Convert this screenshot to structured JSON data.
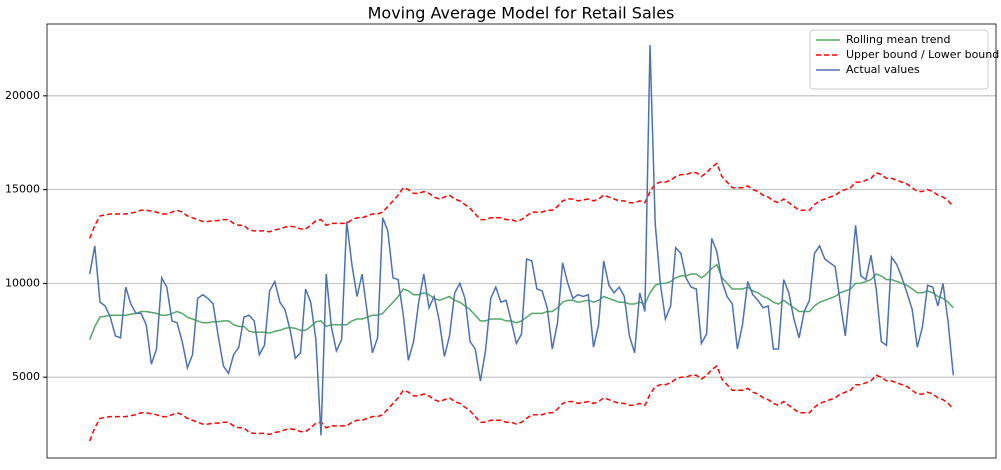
{
  "chart_data": {
    "type": "line",
    "title": "Moving Average Model for Retail Sales",
    "ylim": [
      691,
      23830
    ],
    "yticks": [
      5000,
      10000,
      15000,
      20000
    ],
    "grid": true,
    "legend": "upper right",
    "series": [
      {
        "name": "Rolling mean trend",
        "color": "#55a868",
        "values": [
          7000,
          7700,
          8200,
          8250,
          8300,
          8300,
          8300,
          8300,
          8350,
          8400,
          8500,
          8500,
          8450,
          8400,
          8300,
          8300,
          8400,
          8500,
          8400,
          8200,
          8100,
          8000,
          7900,
          7900,
          7950,
          7950,
          8000,
          8000,
          7800,
          7700,
          7700,
          7450,
          7400,
          7400,
          7400,
          7350,
          7450,
          7500,
          7600,
          7650,
          7600,
          7500,
          7500,
          7700,
          7950,
          8000,
          7700,
          7800,
          7800,
          7800,
          7800,
          8000,
          8100,
          8100,
          8200,
          8300,
          8300,
          8400,
          8700,
          9000,
          9300,
          9700,
          9600,
          9400,
          9400,
          9500,
          9400,
          9200,
          9100,
          9200,
          9300,
          9100,
          9000,
          8800,
          8600,
          8300,
          8000,
          8000,
          8100,
          8100,
          8100,
          8000,
          8000,
          7900,
          8000,
          8200,
          8400,
          8400,
          8400,
          8500,
          8500,
          8700,
          9000,
          9100,
          9100,
          9000,
          9050,
          9100,
          9000,
          9100,
          9300,
          9200,
          9100,
          9000,
          9000,
          8900,
          8900,
          9000,
          8900,
          9500,
          9900,
          10000,
          10000,
          10100,
          10300,
          10400,
          10400,
          10500,
          10500,
          10300,
          10500,
          10800,
          11000,
          10300,
          10000,
          9700,
          9700,
          9700,
          9800,
          9600,
          9500,
          9300,
          9200,
          9000,
          8900,
          9100,
          8900,
          8700,
          8500,
          8500,
          8500,
          8800,
          9000,
          9100,
          9200,
          9300,
          9500,
          9600,
          9700,
          10000,
          10000,
          10100,
          10200,
          10500,
          10400,
          10200,
          10200,
          10100,
          10000,
          9900,
          9700,
          9500,
          9500,
          9600,
          9500,
          9300,
          9200,
          9000,
          8700
        ]
      },
      {
        "name": "Upper bound / Lower bound",
        "color": "#ff0000",
        "dashed": true,
        "values": [
          12400,
          13100,
          13600,
          13650,
          13700,
          13700,
          13700,
          13700,
          13750,
          13800,
          13900,
          13900,
          13850,
          13800,
          13700,
          13700,
          13800,
          13900,
          13800,
          13600,
          13500,
          13400,
          13300,
          13300,
          13350,
          13350,
          13400,
          13400,
          13200,
          13100,
          13100,
          12850,
          12800,
          12800,
          12800,
          12750,
          12850,
          12900,
          13000,
          13050,
          13000,
          12900,
          12900,
          13100,
          13350,
          13400,
          13100,
          13200,
          13200,
          13200,
          13200,
          13400,
          13500,
          13500,
          13600,
          13700,
          13700,
          13800,
          14100,
          14400,
          14700,
          15100,
          15000,
          14800,
          14800,
          14900,
          14800,
          14600,
          14500,
          14600,
          14700,
          14500,
          14400,
          14200,
          14000,
          13700,
          13400,
          13400,
          13500,
          13500,
          13500,
          13400,
          13400,
          13300,
          13400,
          13600,
          13800,
          13800,
          13800,
          13900,
          13900,
          14100,
          14400,
          14500,
          14500,
          14400,
          14450,
          14500,
          14400,
          14500,
          14700,
          14600,
          14500,
          14400,
          14400,
          14300,
          14300,
          14400,
          14300,
          14900,
          15300,
          15400,
          15400,
          15500,
          15700,
          15800,
          15800,
          15900,
          15900,
          15700,
          15900,
          16200,
          16400,
          15700,
          15400,
          15100,
          15100,
          15100,
          15200,
          15000,
          14900,
          14700,
          14600,
          14400,
          14300,
          14500,
          14300,
          14100,
          13900,
          13900,
          13900,
          14200,
          14400,
          14500,
          14600,
          14700,
          14900,
          15000,
          15100,
          15400,
          15400,
          15500,
          15600,
          15900,
          15800,
          15600,
          15600,
          15500,
          15400,
          15300,
          15100,
          14900,
          14900,
          15000,
          14900,
          14700,
          14600,
          14400,
          14100
        ],
        "lower": [
          1600,
          2300,
          2800,
          2850,
          2900,
          2900,
          2900,
          2900,
          2950,
          3000,
          3100,
          3100,
          3050,
          3000,
          2900,
          2900,
          3000,
          3100,
          3000,
          2800,
          2700,
          2600,
          2500,
          2500,
          2550,
          2550,
          2600,
          2600,
          2400,
          2300,
          2300,
          2050,
          2000,
          2000,
          2000,
          1950,
          2050,
          2100,
          2200,
          2250,
          2200,
          2100,
          2100,
          2300,
          2550,
          2600,
          2300,
          2400,
          2400,
          2400,
          2400,
          2600,
          2700,
          2700,
          2800,
          2900,
          2900,
          3000,
          3300,
          3600,
          3900,
          4300,
          4200,
          4000,
          4000,
          4100,
          4000,
          3800,
          3700,
          3800,
          3900,
          3700,
          3600,
          3400,
          3200,
          2900,
          2600,
          2600,
          2700,
          2700,
          2700,
          2600,
          2600,
          2500,
          2600,
          2800,
          3000,
          3000,
          3000,
          3100,
          3100,
          3300,
          3600,
          3700,
          3700,
          3600,
          3650,
          3700,
          3600,
          3700,
          3900,
          3800,
          3700,
          3600,
          3600,
          3500,
          3500,
          3600,
          3500,
          4100,
          4500,
          4600,
          4600,
          4700,
          4900,
          5000,
          5000,
          5100,
          5100,
          4900,
          5100,
          5400,
          5600,
          4900,
          4600,
          4300,
          4300,
          4300,
          4400,
          4200,
          4100,
          3900,
          3800,
          3600,
          3500,
          3700,
          3500,
          3300,
          3100,
          3100,
          3100,
          3400,
          3600,
          3700,
          3800,
          3900,
          4100,
          4200,
          4300,
          4600,
          4600,
          4700,
          4800,
          5100,
          5000,
          4800,
          4800,
          4700,
          4600,
          4500,
          4300,
          4100,
          4100,
          4200,
          4100,
          3900,
          3800,
          3600,
          3300
        ]
      },
      {
        "name": "Actual values",
        "color": "#4c72b0",
        "values": [
          10500,
          12000,
          9000,
          8800,
          8200,
          7200,
          7100,
          9800,
          8900,
          8400,
          8400,
          7800,
          5700,
          6500,
          10300,
          9800,
          8000,
          7900,
          6900,
          5500,
          6200,
          9200,
          9400,
          9200,
          8900,
          7200,
          5600,
          5200,
          6200,
          6600,
          8200,
          8300,
          8000,
          6200,
          6700,
          9600,
          10100,
          9000,
          8600,
          7500,
          6000,
          6300,
          9700,
          9000,
          7000,
          1900,
          10500,
          7700,
          6400,
          7000,
          13300,
          11000,
          9300,
          10500,
          8400,
          6300,
          7100,
          13500,
          12800,
          10300,
          10200,
          8300,
          5900,
          6900,
          9000,
          10500,
          8700,
          9300,
          8000,
          6100,
          7200,
          9500,
          10000,
          9200,
          6900,
          6500,
          4800,
          6400,
          9200,
          9800,
          9000,
          9100,
          8000,
          6800,
          7300,
          11300,
          11200,
          9700,
          9600,
          8700,
          6500,
          7900,
          11100,
          10000,
          9200,
          9400,
          9300,
          9400,
          6600,
          7800,
          11200,
          9900,
          9500,
          9800,
          9300,
          7200,
          6300,
          9500,
          8500,
          22700,
          13200,
          10000,
          8100,
          8800,
          11900,
          11600,
          10300,
          9800,
          9700,
          6800,
          7300,
          12400,
          11700,
          10100,
          9300,
          8900,
          6500,
          7800,
          10100,
          9400,
          9100,
          8700,
          8800,
          6500,
          6500,
          10200,
          9500,
          8100,
          7100,
          8500,
          9100,
          11600,
          12000,
          11300,
          11100,
          10900,
          9000,
          7200,
          10000,
          13100,
          10400,
          10200,
          11500,
          9700,
          6900,
          6700,
          11400,
          11000,
          10300,
          9500,
          8600,
          6600,
          7700,
          9900,
          9800,
          8800,
          10000,
          7900,
          5100
        ]
      }
    ]
  }
}
